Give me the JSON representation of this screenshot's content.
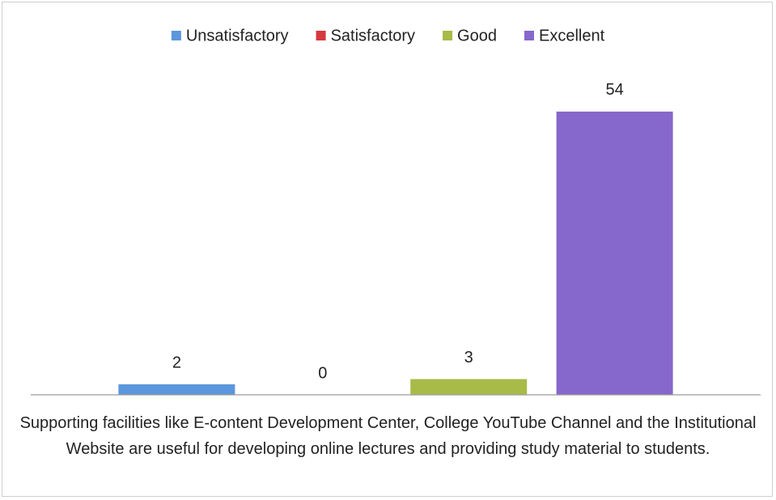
{
  "chart_data": {
    "type": "bar",
    "categories": [
      null
    ],
    "series": [
      {
        "name": "Unsatisfactory",
        "color": "#5b97dc",
        "values": [
          2
        ]
      },
      {
        "name": "Satisfactory",
        "color": "#d6393f",
        "values": [
          0
        ]
      },
      {
        "name": "Good",
        "color": "#a8ba48",
        "values": [
          3
        ]
      },
      {
        "name": "Excellent",
        "color": "#8667cb",
        "values": [
          54
        ]
      }
    ],
    "xlabel": "Supporting facilities like E-content Development Center, College YouTube Channel and the Institutional Website are useful for developing online lectures and providing study material to students.",
    "ylim": [
      0,
      60
    ],
    "legend": "top",
    "data_labels": true
  }
}
